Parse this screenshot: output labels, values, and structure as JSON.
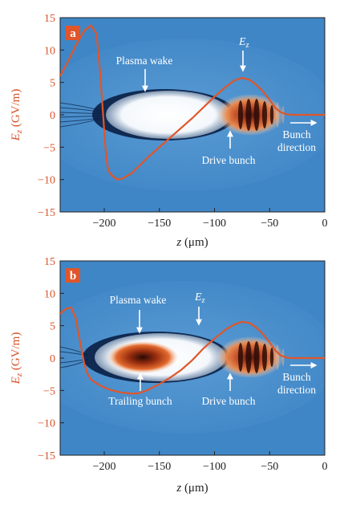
{
  "chart_data": [
    {
      "panel": "a",
      "type": "line",
      "xlabel_var": "z",
      "xlabel_unit": " (μm)",
      "ylabel_var": "E",
      "ylabel_sub": "z",
      "ylabel_unit": " (GV/m)",
      "xlim": [
        -240,
        0
      ],
      "ylim": [
        -15,
        15
      ],
      "xticks": [
        -200,
        -150,
        -100,
        -50,
        0
      ],
      "yticks": [
        -15,
        -10,
        -5,
        0,
        5,
        10,
        15
      ],
      "series": [
        {
          "x": [
            -240,
            -232,
            -225,
            -218,
            -212,
            -207,
            -204,
            -201,
            -199,
            -197,
            -195,
            -192,
            -188,
            -183,
            -175,
            -160,
            -140,
            -120,
            -100,
            -90,
            -82,
            -75,
            -68,
            -62,
            -56,
            -50,
            -45,
            -40,
            -35,
            -30,
            -25,
            -20,
            -15,
            -10,
            -5,
            0
          ],
          "values": [
            6.0,
            8.5,
            11.0,
            13.0,
            13.8,
            12.5,
            7.0,
            0.0,
            -5.0,
            -8.0,
            -9.0,
            -9.5,
            -10.0,
            -9.8,
            -9.0,
            -6.5,
            -3.5,
            -0.5,
            2.8,
            4.3,
            5.3,
            5.7,
            5.4,
            4.6,
            3.6,
            2.3,
            1.1,
            0.4,
            0.1,
            0.0,
            0.0,
            0.0,
            0.0,
            0.0,
            0.0,
            0.0
          ]
        }
      ],
      "annotations": {
        "wake": "Plasma wake",
        "drive": "Drive bunch",
        "ez_var": "E",
        "ez_sub": "z",
        "dir1": "Bunch",
        "dir2": "direction"
      }
    },
    {
      "panel": "b",
      "type": "line",
      "xlabel_var": "z",
      "xlabel_unit": " (μm)",
      "ylabel_var": "E",
      "ylabel_sub": "z",
      "ylabel_unit": " (GV/m)",
      "xlim": [
        -240,
        0
      ],
      "ylim": [
        -15,
        15
      ],
      "xticks": [
        -200,
        -150,
        -100,
        -50,
        0
      ],
      "yticks": [
        -15,
        -10,
        -5,
        0,
        5,
        10,
        15
      ],
      "series": [
        {
          "x": [
            -240,
            -235,
            -230,
            -226,
            -222,
            -218,
            -215,
            -212,
            -208,
            -203,
            -195,
            -185,
            -175,
            -168,
            -160,
            -150,
            -140,
            -130,
            -120,
            -110,
            -100,
            -90,
            -82,
            -75,
            -68,
            -62,
            -56,
            -50,
            -45,
            -40,
            -35,
            -30,
            -25,
            -20,
            -15,
            -10,
            -5,
            0
          ],
          "values": [
            6.8,
            7.6,
            7.8,
            6.2,
            2.5,
            -1.0,
            -2.5,
            -3.3,
            -3.8,
            -4.3,
            -4.9,
            -5.3,
            -5.5,
            -5.4,
            -4.9,
            -4.0,
            -3.0,
            -1.8,
            -0.3,
            1.5,
            3.0,
            4.4,
            5.2,
            5.6,
            5.4,
            4.7,
            3.7,
            2.4,
            1.2,
            0.4,
            0.1,
            0.0,
            0.0,
            0.0,
            0.0,
            0.0,
            0.0,
            0.0
          ]
        }
      ],
      "annotations": {
        "wake": "Plasma wake",
        "drive": "Drive bunch",
        "trailing": "Trailing bunch",
        "ez_var": "E",
        "ez_sub": "z",
        "dir1": "Bunch",
        "dir2": "direction"
      }
    }
  ],
  "colors": {
    "curve": "#e0562a",
    "axis_text": "#d8542b",
    "background": "#3b82c4",
    "badge": "#e0562a"
  }
}
